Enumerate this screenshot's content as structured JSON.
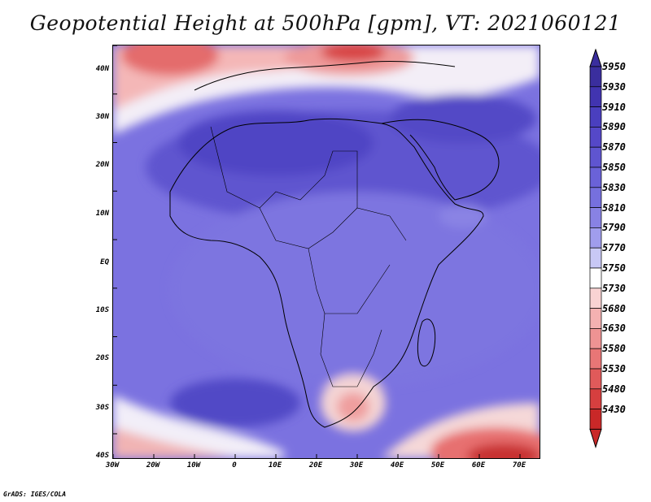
{
  "title": "Geopotential Height at 500hPa [gpm], VT: 2021060121",
  "credit": "GrADS: IGES/COLA",
  "map": {
    "region": "Africa",
    "lat_labels": [
      "40N",
      "30N",
      "20N",
      "10N",
      "EQ",
      "10S",
      "20S",
      "30S",
      "40S"
    ],
    "lon_labels": [
      "30W",
      "20W",
      "10W",
      "0",
      "10E",
      "20E",
      "30E",
      "40E",
      "50E",
      "60E",
      "70E"
    ]
  },
  "colorbar": {
    "levels": [
      "5950",
      "5930",
      "5910",
      "5890",
      "5870",
      "5850",
      "5830",
      "5810",
      "5790",
      "5770",
      "5750",
      "5730",
      "5680",
      "5630",
      "5580",
      "5530",
      "5480",
      "5430"
    ],
    "colors": [
      "#3a2e9e",
      "#4134b0",
      "#4a3fbf",
      "#5548c8",
      "#5f55d0",
      "#6a62d8",
      "#7670de",
      "#8882e4",
      "#a09ded",
      "#c8c8f5",
      "#ffffff",
      "#f9d3d3",
      "#f4b1b1",
      "#ee9393",
      "#e87676",
      "#e05a5a",
      "#d63f3f",
      "#c92828"
    ]
  }
}
